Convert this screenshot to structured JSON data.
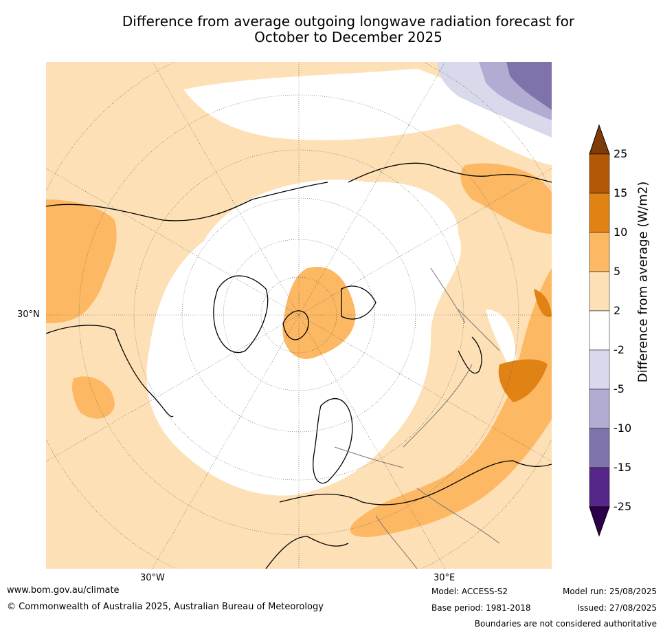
{
  "title_line1": "Difference from average outgoing longwave radiation forecast for",
  "title_line2": "October to December 2025",
  "map": {
    "lat_label": "30°N",
    "lon_label_west": "30°W",
    "lon_label_east": "30°E"
  },
  "colorbar": {
    "title": "Difference from average (W/m2)",
    "ticks": [
      "25",
      "15",
      "10",
      "5",
      "2",
      "-2",
      "-5",
      "-10",
      "-15",
      "-25"
    ],
    "colors": [
      "#7f3b08",
      "#b35806",
      "#e08214",
      "#fdb863",
      "#fee0b6",
      "#ffffff",
      "#d8daeb",
      "#b2abd2",
      "#8073ac",
      "#542788",
      "#2d004b"
    ]
  },
  "footer": {
    "website": "www.bom.gov.au/climate",
    "copyright": "© Commonwealth of Australia 2025, Australian Bureau of Meteorology",
    "model": "Model: ACCESS-S2",
    "base_period": "Base period: 1981-2018",
    "model_run": "Model run: 25/08/2025",
    "issued": "Issued: 27/08/2025",
    "disclaimer": "Boundaries are not considered authoritative"
  }
}
